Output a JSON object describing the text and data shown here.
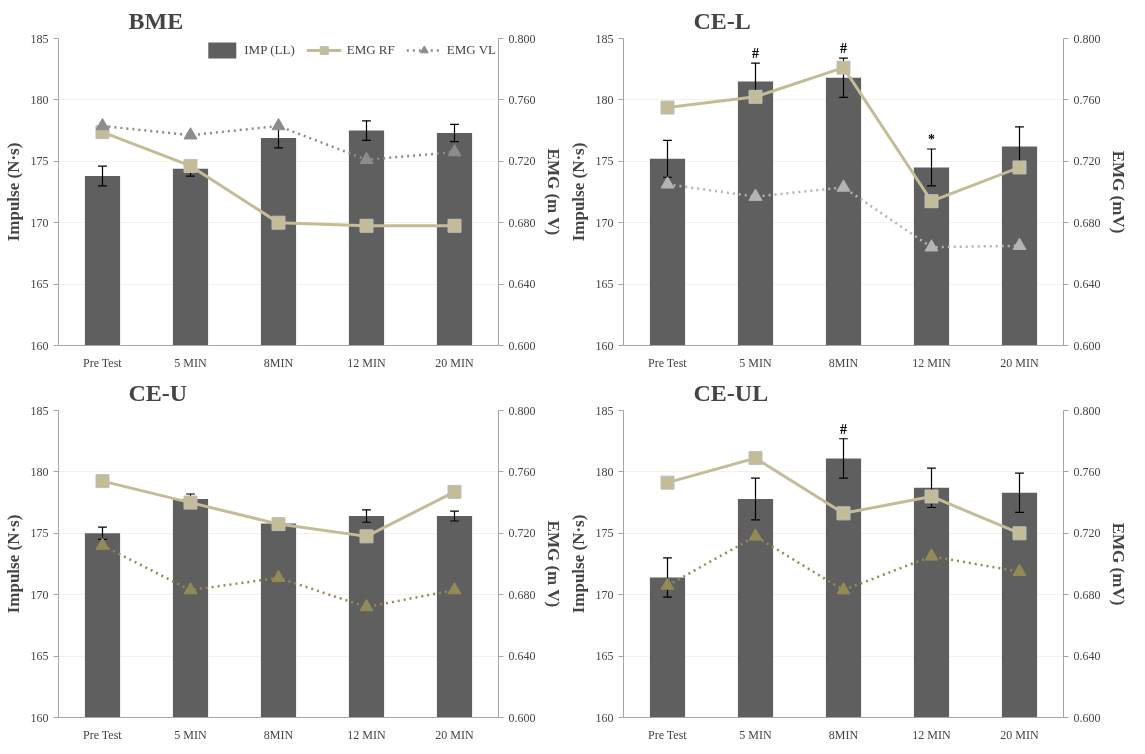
{
  "chart_data": [
    {
      "type": "bar",
      "title": "BME",
      "categories": [
        "Pre Test",
        "5 MIN",
        "8MIN",
        "12 MIN",
        "20 MIN"
      ],
      "ylabel": "Impulse (N·s)",
      "y2label": "EMG (m V)",
      "ylim": [
        160,
        185
      ],
      "yticks": [
        160,
        165,
        170,
        175,
        180,
        185
      ],
      "y2lim": [
        0.6,
        0.8
      ],
      "y2ticks": [
        {
          "value": 0.6,
          "label": "0.600"
        },
        {
          "value": 0.64,
          "label": "0.640"
        },
        {
          "value": 0.68,
          "label": "0.680"
        },
        {
          "value": 0.72,
          "label": "0.720"
        },
        {
          "value": 0.76,
          "label": "0.760"
        },
        {
          "value": 0.8,
          "label": "0.800"
        }
      ],
      "grid": "y",
      "legend": "top",
      "series": [
        {
          "name": "IMP (LL)",
          "type": "bar",
          "color": "#5f5f5f",
          "values": [
            173.8,
            174.4,
            176.9,
            177.5,
            177.3
          ],
          "errors": [
            0.8,
            0.6,
            0.8,
            0.8,
            0.7
          ]
        },
        {
          "name": "EMG RF",
          "type": "line",
          "axis": "y2",
          "color": "#c4bc96",
          "marker": "square",
          "line_style": "solid",
          "values": [
            0.739,
            0.717,
            0.68,
            0.678,
            0.678
          ]
        },
        {
          "name": "EMG VL",
          "type": "line",
          "axis": "y2",
          "color": "#8c8c8c",
          "marker": "triangle",
          "line_style": "dotted",
          "values": [
            0.743,
            0.737,
            0.743,
            0.721,
            0.726
          ]
        }
      ]
    },
    {
      "type": "bar",
      "title": "CE-L",
      "categories": [
        "Pre Test",
        "5 MIN",
        "8MIN",
        "12 MIN",
        "20 MIN"
      ],
      "ylabel": "Impulse (N·s)",
      "y2label": "EMG (mV)",
      "ylim": [
        160,
        185
      ],
      "yticks": [
        160,
        165,
        170,
        175,
        180,
        185
      ],
      "y2lim": [
        0.6,
        0.8
      ],
      "y2ticks": [
        {
          "value": 0.6,
          "label": "0.600"
        },
        {
          "value": 0.64,
          "label": "0.640"
        },
        {
          "value": 0.68,
          "label": "0.680"
        },
        {
          "value": 0.72,
          "label": "0.720"
        },
        {
          "value": 0.76,
          "label": "0.760"
        },
        {
          "value": 0.8,
          "label": "0.800"
        }
      ],
      "grid": "y",
      "annotations": [
        {
          "text": "#",
          "x": "5 MIN",
          "y": 181.5
        },
        {
          "text": "#",
          "x": "8MIN",
          "y": 181.8
        },
        {
          "text": "*",
          "x": "12 MIN",
          "y": 174.5
        }
      ],
      "series": [
        {
          "type": "bar",
          "color": "#5f5f5f",
          "values": [
            175.2,
            181.5,
            181.8,
            174.5,
            176.2
          ],
          "errors": [
            1.5,
            1.5,
            1.6,
            1.5,
            1.6
          ]
        },
        {
          "type": "line",
          "axis": "y2",
          "color": "#c4bc96",
          "marker": "square",
          "line_style": "solid",
          "values": [
            0.755,
            0.762,
            0.781,
            0.694,
            0.716
          ]
        },
        {
          "type": "line",
          "axis": "y2",
          "color": "#b4b4b4",
          "marker": "triangle",
          "line_style": "dotted",
          "values": [
            0.705,
            0.697,
            0.703,
            0.664,
            0.665
          ]
        }
      ]
    },
    {
      "type": "bar",
      "title": "CE-U",
      "categories": [
        "Pre Test",
        "5 MIN",
        "8MIN",
        "12 MIN",
        "20 MIN"
      ],
      "ylabel": "Impulse (N·s)",
      "y2label": "EMG (m V)",
      "ylim": [
        160,
        185
      ],
      "yticks": [
        160,
        165,
        170,
        175,
        180,
        185
      ],
      "y2lim": [
        0.6,
        0.8
      ],
      "y2ticks": [
        {
          "value": 0.6,
          "label": "0.600"
        },
        {
          "value": 0.64,
          "label": "0.640"
        },
        {
          "value": 0.68,
          "label": "0.680"
        },
        {
          "value": 0.72,
          "label": "0.720"
        },
        {
          "value": 0.76,
          "label": "0.760"
        },
        {
          "value": 0.8,
          "label": "0.800"
        }
      ],
      "grid": "y",
      "series": [
        {
          "type": "bar",
          "color": "#5f5f5f",
          "values": [
            175.0,
            177.8,
            175.8,
            176.4,
            176.4
          ],
          "errors": [
            0.5,
            0.4,
            null,
            0.5,
            0.4
          ]
        },
        {
          "type": "line",
          "axis": "y2",
          "color": "#c4bc96",
          "marker": "square",
          "line_style": "solid",
          "values": [
            0.754,
            0.74,
            0.726,
            0.718,
            0.747
          ]
        },
        {
          "type": "line",
          "axis": "y2",
          "color": "#948a55",
          "marker": "triangle",
          "line_style": "dotted",
          "values": [
            0.712,
            0.683,
            0.691,
            0.672,
            0.683
          ]
        }
      ]
    },
    {
      "type": "bar",
      "title": "CE-UL",
      "categories": [
        "Pre Test",
        "5 MIN",
        "8MIN",
        "12 MIN",
        "20 MIN"
      ],
      "ylabel": "Impulse (N·s)",
      "y2label": "EMG (mV)",
      "ylim": [
        160,
        185
      ],
      "yticks": [
        160,
        165,
        170,
        175,
        180,
        185
      ],
      "y2lim": [
        0.6,
        0.8
      ],
      "y2ticks": [
        {
          "value": 0.6,
          "label": "0.600"
        },
        {
          "value": 0.64,
          "label": "0.640"
        },
        {
          "value": 0.68,
          "label": "0.680"
        },
        {
          "value": 0.72,
          "label": "0.720"
        },
        {
          "value": 0.76,
          "label": "0.760"
        },
        {
          "value": 0.8,
          "label": "0.800"
        }
      ],
      "grid": "y",
      "annotations": [
        {
          "text": "#",
          "x": "8MIN",
          "y": 181.1
        }
      ],
      "series": [
        {
          "type": "bar",
          "color": "#5f5f5f",
          "values": [
            171.4,
            177.8,
            181.1,
            178.7,
            178.3
          ],
          "errors": [
            1.6,
            1.7,
            1.6,
            1.6,
            1.6
          ]
        },
        {
          "type": "line",
          "axis": "y2",
          "color": "#c4bc96",
          "marker": "square",
          "line_style": "solid",
          "values": [
            0.753,
            0.769,
            0.733,
            0.744,
            0.72
          ]
        },
        {
          "type": "line",
          "axis": "y2",
          "color": "#948a55",
          "marker": "triangle",
          "line_style": "dotted",
          "values": [
            0.686,
            0.718,
            0.683,
            0.705,
            0.695
          ]
        }
      ]
    }
  ]
}
